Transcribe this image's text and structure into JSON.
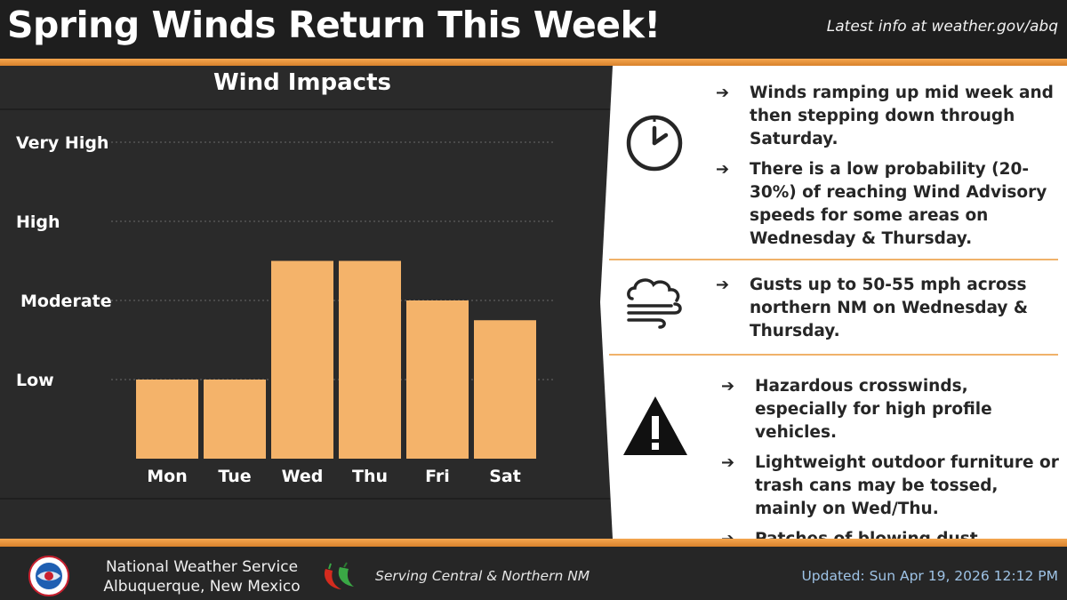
{
  "header": {
    "title": "Spring Winds Return This Week!",
    "latest_info": "Latest info at weather.gov/abq"
  },
  "panel": {
    "title": "Wind Impacts"
  },
  "chart_data": {
    "type": "bar",
    "title": "Wind Impacts",
    "categories": [
      "Mon",
      "Tue",
      "Wed",
      "Thu",
      "Fri",
      "Sat"
    ],
    "values": [
      1.0,
      1.0,
      2.5,
      2.5,
      2.0,
      1.75
    ],
    "y_levels": [
      "Low",
      "Moderate",
      "High",
      "Very High"
    ],
    "ylim": [
      0,
      4
    ],
    "bar_color": "#f4b36a",
    "grid": "dotted"
  },
  "sections": [
    {
      "icon": "clock-icon",
      "bullets": [
        "Winds ramping up mid week and then stepping down through Saturday.",
        "There is a low probability (20-30%) of reaching Wind Advisory speeds for some areas on Wednesday & Thursday."
      ]
    },
    {
      "icon": "wind-cloud-icon",
      "bullets": [
        "Gusts up to 50-55 mph across northern NM on Wednesday & Thursday."
      ]
    },
    {
      "icon": "warning-icon",
      "bullets": [
        "Hazardous crosswinds, especially for high profile vehicles.",
        "Lightweight outdoor furniture or trash cans may be tossed, mainly on Wed/Thu.",
        "Patches of blowing dust Wed/Thu."
      ]
    }
  ],
  "footer": {
    "office_line1": "National Weather Service",
    "office_line2": "Albuquerque, New Mexico",
    "serving": "Serving Central & Northern NM",
    "updated": "Updated: Sun Apr 19, 2026 12:12 PM"
  },
  "colors": {
    "accent_orange": "#f4a64f",
    "bar": "#f4b36a",
    "updated_text": "#9ec3e6"
  }
}
